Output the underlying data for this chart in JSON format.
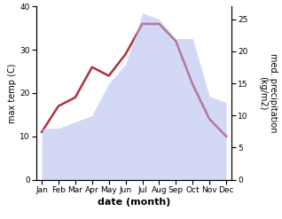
{
  "months": [
    "Jan",
    "Feb",
    "Mar",
    "Apr",
    "May",
    "Jun",
    "Jul",
    "Aug",
    "Sep",
    "Oct",
    "Nov",
    "Dec"
  ],
  "temp_max": [
    11,
    17,
    19,
    26,
    24,
    29,
    36,
    36,
    32,
    22,
    14,
    10
  ],
  "precipitation": [
    8,
    8,
    9,
    10,
    15,
    18,
    26,
    25,
    22,
    22,
    13,
    12
  ],
  "temp_color": "#b03040",
  "precip_color": "#b0b8ee",
  "precip_fill_alpha": 0.55,
  "xlabel": "date (month)",
  "ylabel_left": "max temp (C)",
  "ylabel_right": "med. precipitation\n(kg/m2)",
  "ylim_left": [
    0,
    40
  ],
  "ylim_right": [
    0,
    27
  ],
  "yticks_left": [
    0,
    10,
    20,
    30,
    40
  ],
  "yticks_right": [
    0,
    5,
    10,
    15,
    20,
    25
  ],
  "line_width": 1.8,
  "bg_color": "#ffffff",
  "tick_fontsize": 6.5,
  "label_fontsize": 7,
  "xlabel_fontsize": 8
}
